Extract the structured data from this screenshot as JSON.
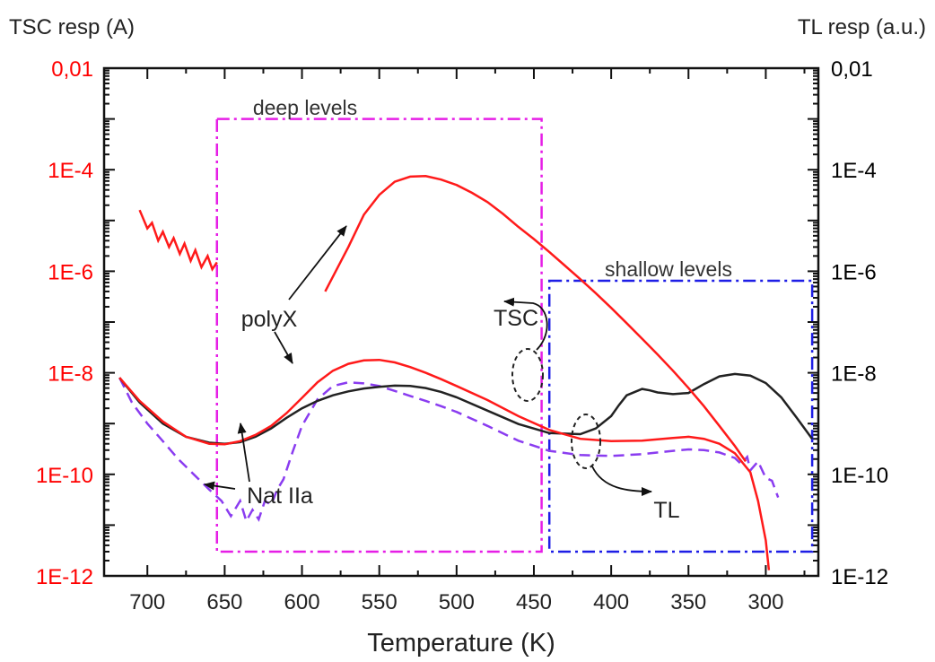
{
  "chart_data": {
    "type": "line",
    "xlabel": "Temperature (K)",
    "y_left_label": "TSC resp (A)",
    "y_right_label": "TL resp (a.u.)",
    "xlim": [
      728,
      266
    ],
    "x_ticks": [
      700,
      650,
      600,
      550,
      500,
      450,
      400,
      350,
      300
    ],
    "x_tick_labels": [
      "700",
      "650",
      "600",
      "550",
      "500",
      "450",
      "400",
      "350",
      "300"
    ],
    "ylim": [
      1e-12,
      0.01
    ],
    "y_scale": "log",
    "y_ticks": [
      1e-12,
      1e-10,
      1e-08,
      1e-06,
      0.0001,
      0.01
    ],
    "y_left_tick_labels": [
      "1E-12",
      "1E-10",
      "1E-8",
      "1E-6",
      "1E-4",
      "0,01"
    ],
    "y_right_tick_labels": [
      "1E-12",
      "1E-10",
      "1E-8",
      "1E-6",
      "1E-4",
      "0,01"
    ],
    "colors": {
      "left_axis": "#ff0000",
      "right_axis": "#000000",
      "polyX": "#ff1a1a",
      "natIIa_tsc": "#222222",
      "natIIa_tl": "#8a3cf0",
      "deep_box": "#e61ee6",
      "shallow_box": "#1e1ee6"
    },
    "series": [
      {
        "key": "polyX_tsc_lowT",
        "color": "#ff1a1a",
        "style": "solid",
        "x": [
          585,
          570,
          560,
          550,
          540,
          530,
          520,
          510,
          500,
          490,
          480,
          470,
          460,
          450,
          440,
          430,
          420,
          410,
          400,
          390,
          380,
          370,
          360,
          350,
          340,
          330,
          320,
          313
        ],
        "y": [
          4e-07,
          3e-06,
          1.3e-05,
          3.2e-05,
          5.8e-05,
          7.3e-05,
          7.5e-05,
          6.4e-05,
          5e-05,
          3.5e-05,
          2.3e-05,
          1.35e-05,
          7.5e-06,
          4.3e-06,
          2.4e-06,
          1.3e-06,
          7e-07,
          3.7e-07,
          1.9e-07,
          9.5e-08,
          4.7e-08,
          2.3e-08,
          1.1e-08,
          5e-09,
          2.2e-09,
          9e-10,
          3.6e-10,
          1.8e-10
        ]
      },
      {
        "key": "polyX_tsc_highT",
        "color": "#ff1a1a",
        "style": "solid",
        "x": [
          705,
          700,
          697,
          693,
          690,
          686,
          683,
          679,
          676,
          672,
          669,
          665,
          661,
          658,
          655
        ],
        "y": [
          1.6e-05,
          7e-06,
          9e-06,
          4e-06,
          6e-06,
          3e-06,
          4.5e-06,
          2.2e-06,
          3.5e-06,
          1.6e-06,
          2.6e-06,
          1.2e-06,
          2e-06,
          1.1e-06,
          1.5e-06
        ]
      },
      {
        "key": "polyX_tl",
        "color": "#ff1a1a",
        "style": "solid",
        "x": [
          718,
          705,
          690,
          675,
          660,
          650,
          640,
          630,
          620,
          610,
          600,
          590,
          580,
          570,
          560,
          550,
          540,
          530,
          520,
          510,
          500,
          480,
          460,
          440,
          420,
          400,
          380,
          360,
          350,
          340,
          330,
          320,
          310,
          305,
          300,
          298
        ],
        "y": [
          8e-09,
          2.8e-09,
          1.1e-09,
          5.5e-10,
          4e-10,
          3.9e-10,
          4.5e-10,
          6e-10,
          9e-10,
          1.6e-09,
          3.2e-09,
          6.5e-09,
          1.1e-08,
          1.5e-08,
          1.75e-08,
          1.8e-08,
          1.6e-08,
          1.3e-08,
          1e-08,
          7.5e-09,
          5.5e-09,
          2.9e-09,
          1.4e-09,
          7.5e-10,
          5e-10,
          4.5e-10,
          4.6e-10,
          5.2e-10,
          5.5e-10,
          5e-10,
          4e-10,
          2.6e-10,
          1.1e-10,
          3e-11,
          5e-12,
          1.3e-12
        ]
      },
      {
        "key": "natIIa_tsc",
        "color": "#222222",
        "style": "solid",
        "x": [
          718,
          705,
          690,
          675,
          660,
          650,
          640,
          630,
          620,
          610,
          600,
          590,
          580,
          570,
          560,
          550,
          540,
          530,
          520,
          510,
          500,
          480,
          460,
          440,
          420,
          410,
          400,
          395,
          390,
          380,
          375,
          370,
          360,
          350,
          340,
          330,
          320,
          310,
          300,
          290,
          280,
          270
        ],
        "y": [
          8e-09,
          2.6e-09,
          1e-09,
          5.5e-10,
          4.2e-10,
          4e-10,
          4.3e-10,
          5.5e-10,
          8e-10,
          1.3e-09,
          2e-09,
          2.8e-09,
          3.6e-09,
          4.3e-09,
          4.9e-09,
          5.3e-09,
          5.6e-09,
          5.5e-09,
          5e-09,
          4.2e-09,
          3.3e-09,
          1.8e-09,
          9.8e-10,
          6.5e-10,
          6.2e-10,
          8e-10,
          1.4e-09,
          2.3e-09,
          3.6e-09,
          4.8e-09,
          4.5e-09,
          4.1e-09,
          3.8e-09,
          4e-09,
          6e-09,
          8.5e-09,
          9.5e-09,
          8.8e-09,
          6.3e-09,
          3.3e-09,
          1.3e-09,
          5e-10
        ]
      },
      {
        "key": "natIIa_tl",
        "color": "#8a3cf0",
        "style": "dashed",
        "x": [
          718,
          710,
          700,
          690,
          680,
          670,
          660,
          652,
          646,
          640,
          636,
          632,
          628,
          624,
          620,
          616,
          612,
          606,
          600,
          590,
          580,
          570,
          560,
          550,
          540,
          530,
          520,
          510,
          500,
          480,
          460,
          440,
          420,
          400,
          380,
          360,
          350,
          340,
          330,
          320,
          316,
          312,
          310,
          305,
          300,
          296,
          292
        ],
        "y": [
          8e-09,
          2.6e-09,
          1e-09,
          4.5e-10,
          2e-10,
          1e-10,
          5e-11,
          3e-11,
          1.5e-11,
          3e-11,
          1.2e-11,
          2e-11,
          1.3e-11,
          3e-11,
          2.5e-11,
          5e-11,
          8e-11,
          2.8e-10,
          9e-10,
          3e-09,
          5.5e-09,
          6.5e-09,
          6.2e-09,
          5.5e-09,
          4.4e-09,
          3.5e-09,
          2.8e-09,
          2.2e-09,
          1.7e-09,
          9e-10,
          4.6e-10,
          2.9e-10,
          2.4e-10,
          2.3e-10,
          2.5e-10,
          2.9e-10,
          3.1e-10,
          3e-10,
          2.7e-10,
          2.1e-10,
          1.6e-10,
          2.2e-10,
          1.2e-10,
          1.8e-10,
          8.5e-11,
          7.5e-11,
          3.5e-11
        ]
      }
    ],
    "regions": [
      {
        "key": "deep",
        "label": "deep levels",
        "color": "#e61ee6",
        "x": [
          655,
          445
        ],
        "y": [
          3e-12,
          0.001
        ]
      },
      {
        "key": "shallow",
        "label": "shallow levels",
        "color": "#1e1ee6",
        "x": [
          440,
          270
        ],
        "y": [
          3e-12,
          6.5e-07
        ]
      }
    ],
    "annotations": [
      {
        "key": "polyX",
        "text": "polyX"
      },
      {
        "key": "natIIa",
        "text": "Nat IIa"
      },
      {
        "key": "tsc",
        "text": "TSC"
      },
      {
        "key": "tl",
        "text": "TL"
      }
    ]
  }
}
